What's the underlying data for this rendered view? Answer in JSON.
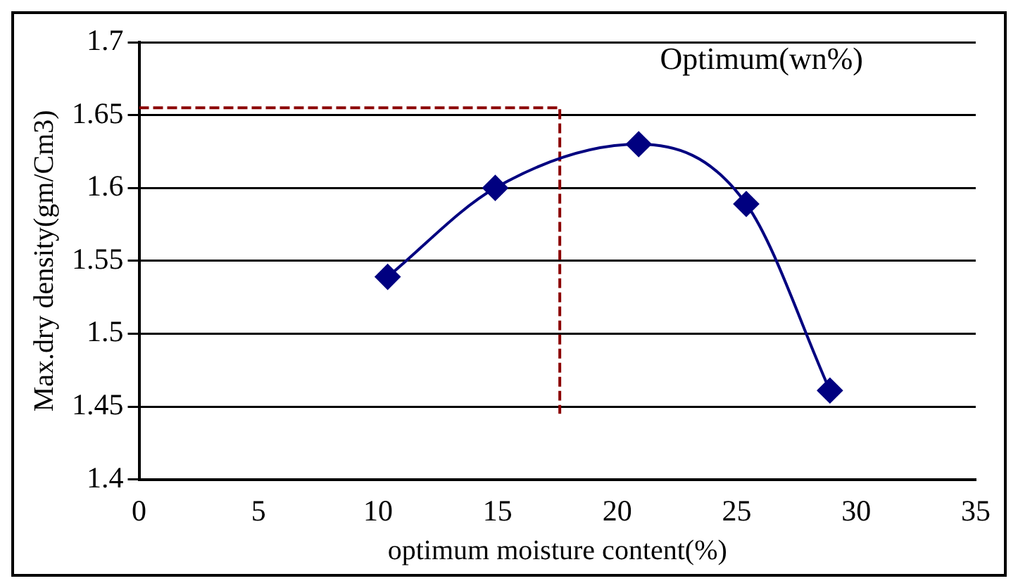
{
  "chart_data": {
    "type": "line",
    "xlabel": "optimum moisture content(%)",
    "ylabel": "Max.dry density(gm/Cm3)",
    "annotations": [
      "Optimum(wn%)"
    ],
    "xlim": [
      0,
      35
    ],
    "xticks": [
      0,
      5,
      10,
      15,
      20,
      25,
      30,
      35
    ],
    "ylim": [
      1.4,
      1.7
    ],
    "yticks": [
      1.4,
      1.45,
      1.5,
      1.55,
      1.6,
      1.65,
      1.7
    ],
    "grid": "y",
    "legend": false,
    "series": [
      {
        "color": "#000080",
        "x": [
          10.4,
          14.9,
          20.9,
          25.4,
          28.9
        ],
        "values": [
          1.539,
          1.6,
          1.63,
          1.589,
          1.461
        ],
        "marker": "diamond",
        "line_style": "solid"
      },
      {
        "color": "#8b0000",
        "x": [
          0,
          17.6,
          17.6
        ],
        "values": [
          1.655,
          1.655,
          1.445
        ],
        "marker": "none",
        "line_style": "dashed"
      }
    ]
  }
}
